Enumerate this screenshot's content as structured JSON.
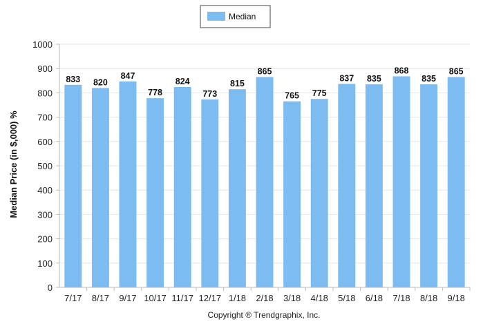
{
  "chart_data": {
    "type": "bar",
    "categories": [
      "7/17",
      "8/17",
      "9/17",
      "10/17",
      "11/17",
      "12/17",
      "1/18",
      "2/18",
      "3/18",
      "4/18",
      "5/18",
      "6/18",
      "7/18",
      "8/18",
      "9/18"
    ],
    "series": [
      {
        "name": "Median",
        "values": [
          833,
          820,
          847,
          778,
          824,
          773,
          815,
          865,
          765,
          775,
          837,
          835,
          868,
          835,
          865
        ]
      }
    ],
    "ylabel": "Median Price (in $,000) %",
    "xlabel": "",
    "ylim": [
      0,
      1000
    ],
    "yticks": [
      0,
      100,
      200,
      300,
      400,
      500,
      600,
      700,
      800,
      900,
      1000
    ],
    "grid": true,
    "legend_position": "top-center",
    "colors": {
      "bar": "#7dbcf0",
      "grid": "#e6e6e6",
      "axis": "#bbbbbb"
    }
  },
  "footer": {
    "copyright": "Copyright ® Trendgraphix, Inc."
  }
}
